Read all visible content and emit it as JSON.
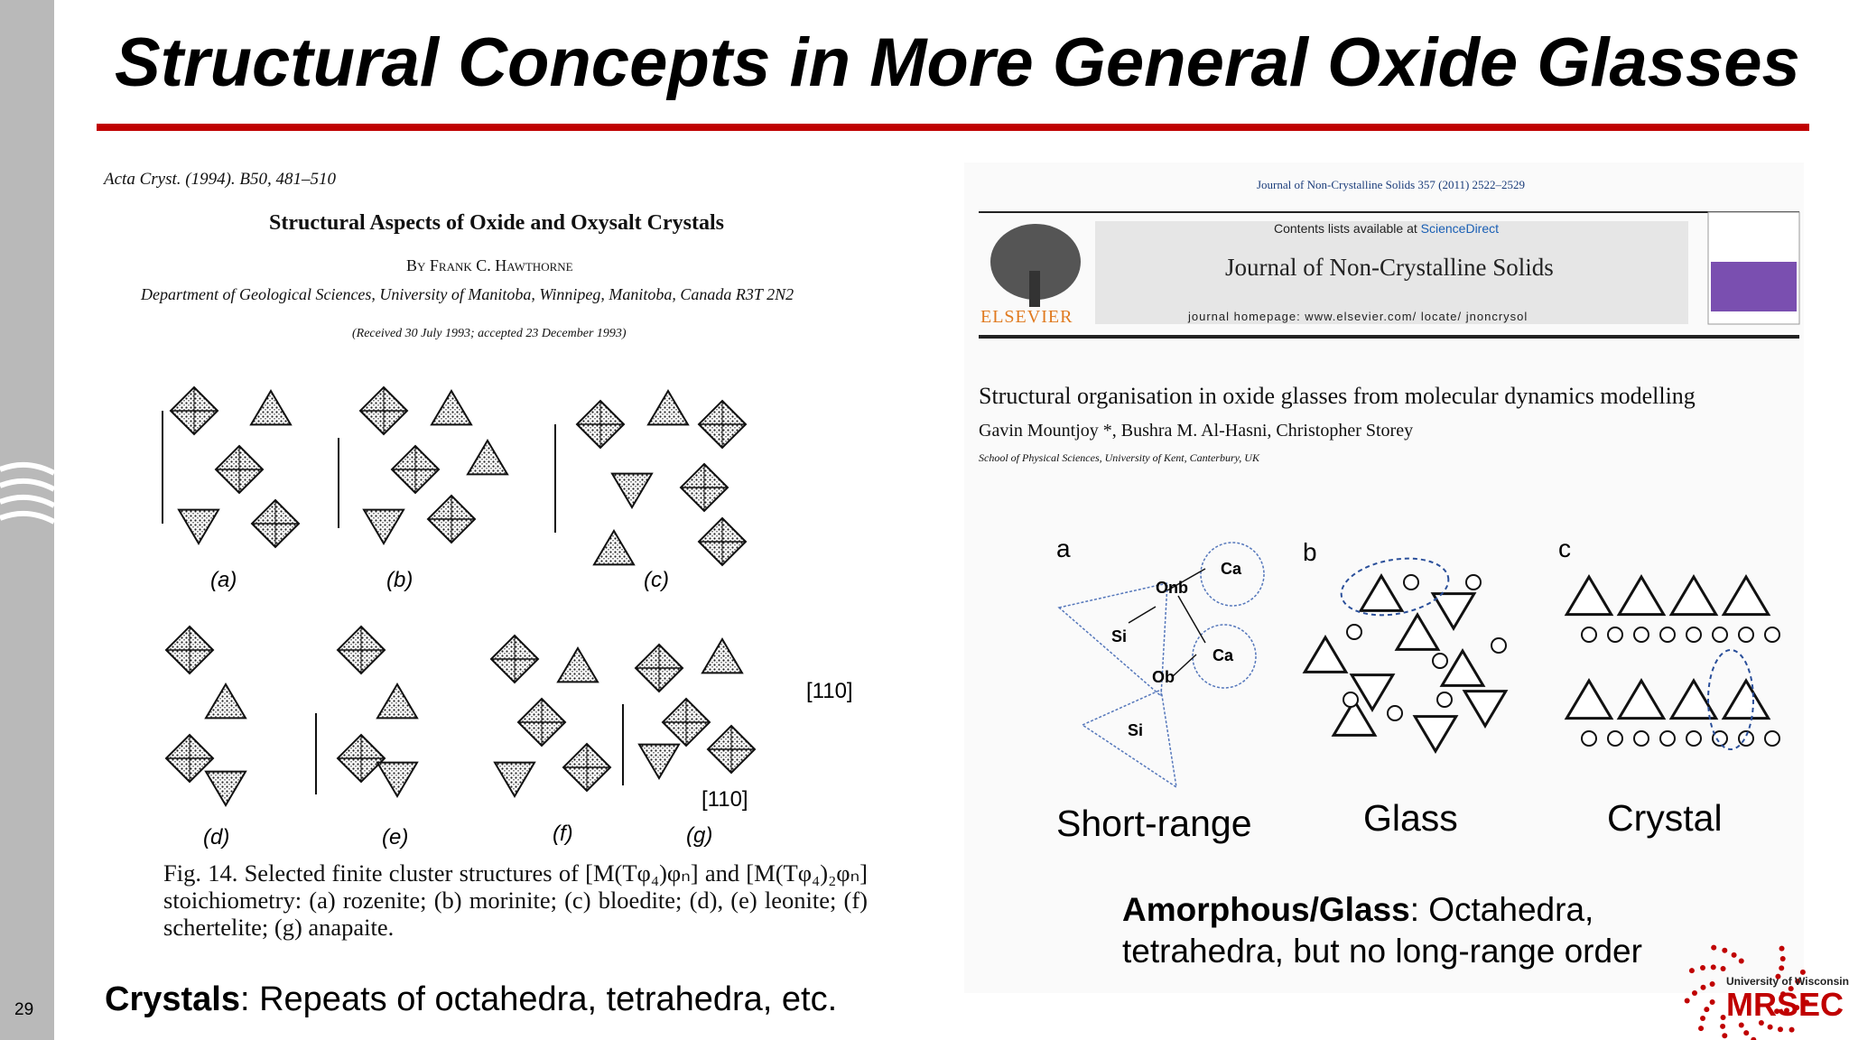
{
  "slide_number": "29",
  "title": "Structural Concepts in More General Oxide Glasses",
  "left_paper": {
    "citation": "Acta Cryst. (1994). B50, 481–510",
    "title": "Structural Aspects of Oxide and Oxysalt Crystals",
    "author": "By Frank C. Hawthorne",
    "affiliation": "Department of Geological Sciences, University of Manitoba, Winnipeg, Manitoba, Canada R3T 2N2",
    "received": "(Received 30 July 1993; accepted 23 December 1993)",
    "panels": [
      "(a)",
      "(b)",
      "(c)",
      "(d)",
      "(e)",
      "(f)",
      "(g)"
    ],
    "direction_labels": [
      "[110]",
      "[110]"
    ],
    "caption": "Fig. 14. Selected finite cluster structures of [M(Tφ₄)φₙ] and [M(Tφ₄)₂φₙ] stoichiometry: (a) rozenite; (b) morinite; (c) bloedite; (d), (e) leonite; (f) schertelite; (g) anapaite."
  },
  "left_note": {
    "bold": "Crystals",
    "text": ": Repeats of octahedra, tetrahedra, etc."
  },
  "right_paper": {
    "journal_line": "Journal of Non-Crystalline Solids 357 (2011) 2522–2529",
    "contents": "Contents lists available at",
    "contents_link": "ScienceDirect",
    "journal_name": "Journal of Non-Crystalline Solids",
    "homepage": "journal homepage: www.elsevier.com/ locate/ jnoncrysol",
    "publisher": "ELSEVIER",
    "title": "Structural organisation in oxide glasses from molecular dynamics modelling",
    "authors": "Gavin Mountjoy *, Bushra M. Al-Hasni, Christopher Storey",
    "affiliation": "School of Physical Sciences, University of Kent, Canterbury, UK"
  },
  "diagram": {
    "panel_letters": [
      "a",
      "b",
      "c"
    ],
    "atom_labels": [
      "Onb",
      "Ca",
      "Si",
      "Ca",
      "Ob",
      "Si"
    ],
    "captions": [
      "Short-range",
      "Glass",
      "Crystal"
    ]
  },
  "right_note": {
    "bold": "Amorphous/Glass",
    "text": ": Octahedra, tetrahedra, but no long-range order"
  },
  "logo": {
    "line1": "University of Wisconsin",
    "line2": "MRSEC"
  }
}
